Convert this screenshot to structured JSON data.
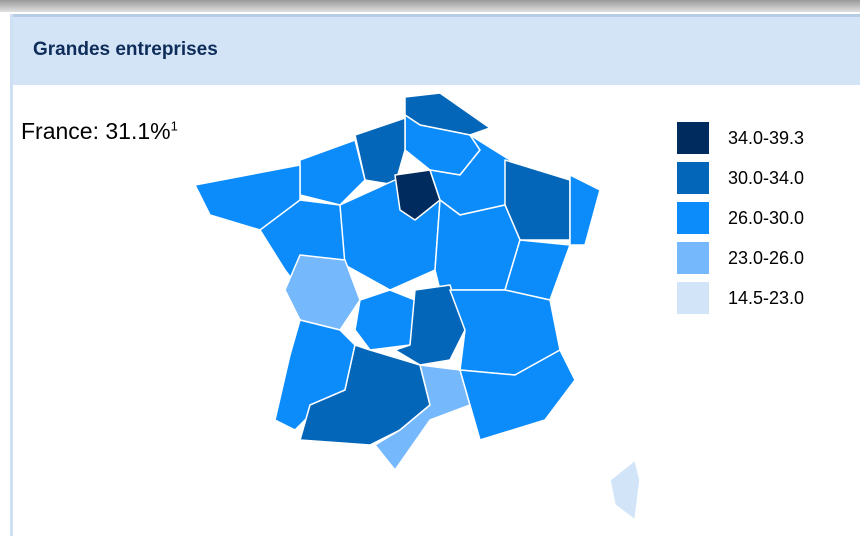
{
  "header": {
    "title": "Grandes entreprises"
  },
  "map": {
    "national_label": "France: 31.1%",
    "national_note": "1"
  },
  "legend": [
    {
      "label": "34.0-39.3",
      "color": "#002b5e"
    },
    {
      "label": "30.0-34.0",
      "color": "#0466b8"
    },
    {
      "label": "26.0-30.0",
      "color": "#0c8cfb"
    },
    {
      "label": "23.0-26.0",
      "color": "#76b8fc"
    },
    {
      "label": "14.5-23.0",
      "color": "#d2e5f8"
    }
  ]
}
